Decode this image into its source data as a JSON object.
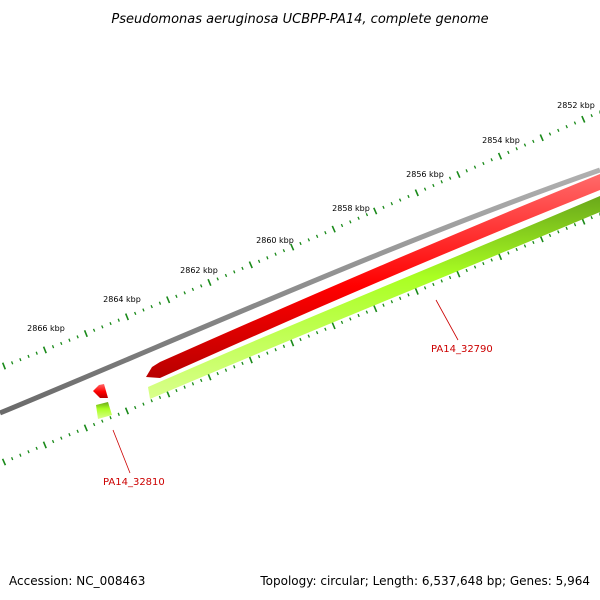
{
  "title": "Pseudomonas aeruginosa UCBPP-PA14, complete genome",
  "ruler_labels": [
    "2852 kbp",
    "2854 kbp",
    "2856 kbp",
    "2858 kbp",
    "2860 kbp",
    "2862 kbp",
    "2864 kbp",
    "2866 kbp"
  ],
  "genes": [
    {
      "label": "PA14_32790",
      "strand": "forward"
    },
    {
      "label": "PA14_32810",
      "strand": "forward"
    }
  ],
  "footer": {
    "accession": "Accession: NC_008463",
    "summary": "Topology: circular; Length: 6,537,648 bp; Genes: 5,964"
  },
  "colors": {
    "backbone": "#808080",
    "gene_red": "#ff0000",
    "gene_green": "#aaff22",
    "ruler_ticks": "#1a8a1a",
    "label_red": "#cc0000"
  }
}
